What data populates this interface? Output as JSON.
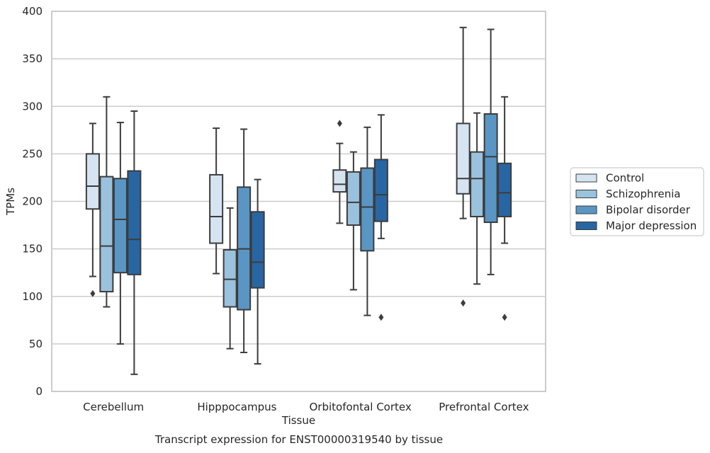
{
  "chart_data": {
    "type": "box",
    "caption": "Transcript expression for ENST00000319540 by tissue",
    "xlabel": "Tissue",
    "ylabel": "TPMs",
    "ylim": [
      0,
      400
    ],
    "yticks": [
      0,
      50,
      100,
      150,
      200,
      250,
      300,
      350,
      400
    ],
    "grid": "horizontal",
    "legend_position": "right",
    "categories": [
      "Cerebellum",
      "Hipppocampus",
      "Orbitofontal Cortex",
      "Prefrontal Cortex"
    ],
    "series": [
      {
        "name": "Control",
        "color": "#d6e4f2",
        "boxes": [
          {
            "whisker_low": 121,
            "q1": 192,
            "median": 216,
            "q3": 250,
            "whisker_high": 282,
            "outliers": [
              103
            ]
          },
          {
            "whisker_low": 124,
            "q1": 156,
            "median": 184,
            "q3": 228,
            "whisker_high": 277,
            "outliers": []
          },
          {
            "whisker_low": 177,
            "q1": 210,
            "median": 218,
            "q3": 233,
            "whisker_high": 261,
            "outliers": [
              282
            ]
          },
          {
            "whisker_low": 182,
            "q1": 208,
            "median": 224,
            "q3": 282,
            "whisker_high": 383,
            "outliers": [
              93
            ]
          }
        ]
      },
      {
        "name": "Schizophrenia",
        "color": "#9ac2dd",
        "boxes": [
          {
            "whisker_low": 89,
            "q1": 105,
            "median": 153,
            "q3": 226,
            "whisker_high": 310,
            "outliers": []
          },
          {
            "whisker_low": 45,
            "q1": 89,
            "median": 118,
            "q3": 149,
            "whisker_high": 193,
            "outliers": []
          },
          {
            "whisker_low": 107,
            "q1": 175,
            "median": 199,
            "q3": 231,
            "whisker_high": 252,
            "outliers": []
          },
          {
            "whisker_low": 113,
            "q1": 184,
            "median": 224,
            "q3": 252,
            "whisker_high": 293,
            "outliers": []
          }
        ]
      },
      {
        "name": "Bipolar disorder",
        "color": "#5996c4",
        "boxes": [
          {
            "whisker_low": 50,
            "q1": 125,
            "median": 181,
            "q3": 224,
            "whisker_high": 283,
            "outliers": []
          },
          {
            "whisker_low": 41,
            "q1": 86,
            "median": 150,
            "q3": 215,
            "whisker_high": 276,
            "outliers": []
          },
          {
            "whisker_low": 80,
            "q1": 148,
            "median": 194,
            "q3": 235,
            "whisker_high": 278,
            "outliers": []
          },
          {
            "whisker_low": 123,
            "q1": 178,
            "median": 247,
            "q3": 292,
            "whisker_high": 381,
            "outliers": []
          }
        ]
      },
      {
        "name": "Major depression",
        "color": "#2866a3",
        "boxes": [
          {
            "whisker_low": 18,
            "q1": 123,
            "median": 160,
            "q3": 232,
            "whisker_high": 295,
            "outliers": []
          },
          {
            "whisker_low": 29,
            "q1": 109,
            "median": 136,
            "q3": 189,
            "whisker_high": 223,
            "outliers": []
          },
          {
            "whisker_low": 161,
            "q1": 179,
            "median": 207,
            "q3": 244,
            "whisker_high": 291,
            "outliers": [
              78
            ]
          },
          {
            "whisker_low": 156,
            "q1": 184,
            "median": 209,
            "q3": 240,
            "whisker_high": 310,
            "outliers": [
              78
            ]
          }
        ]
      }
    ]
  }
}
